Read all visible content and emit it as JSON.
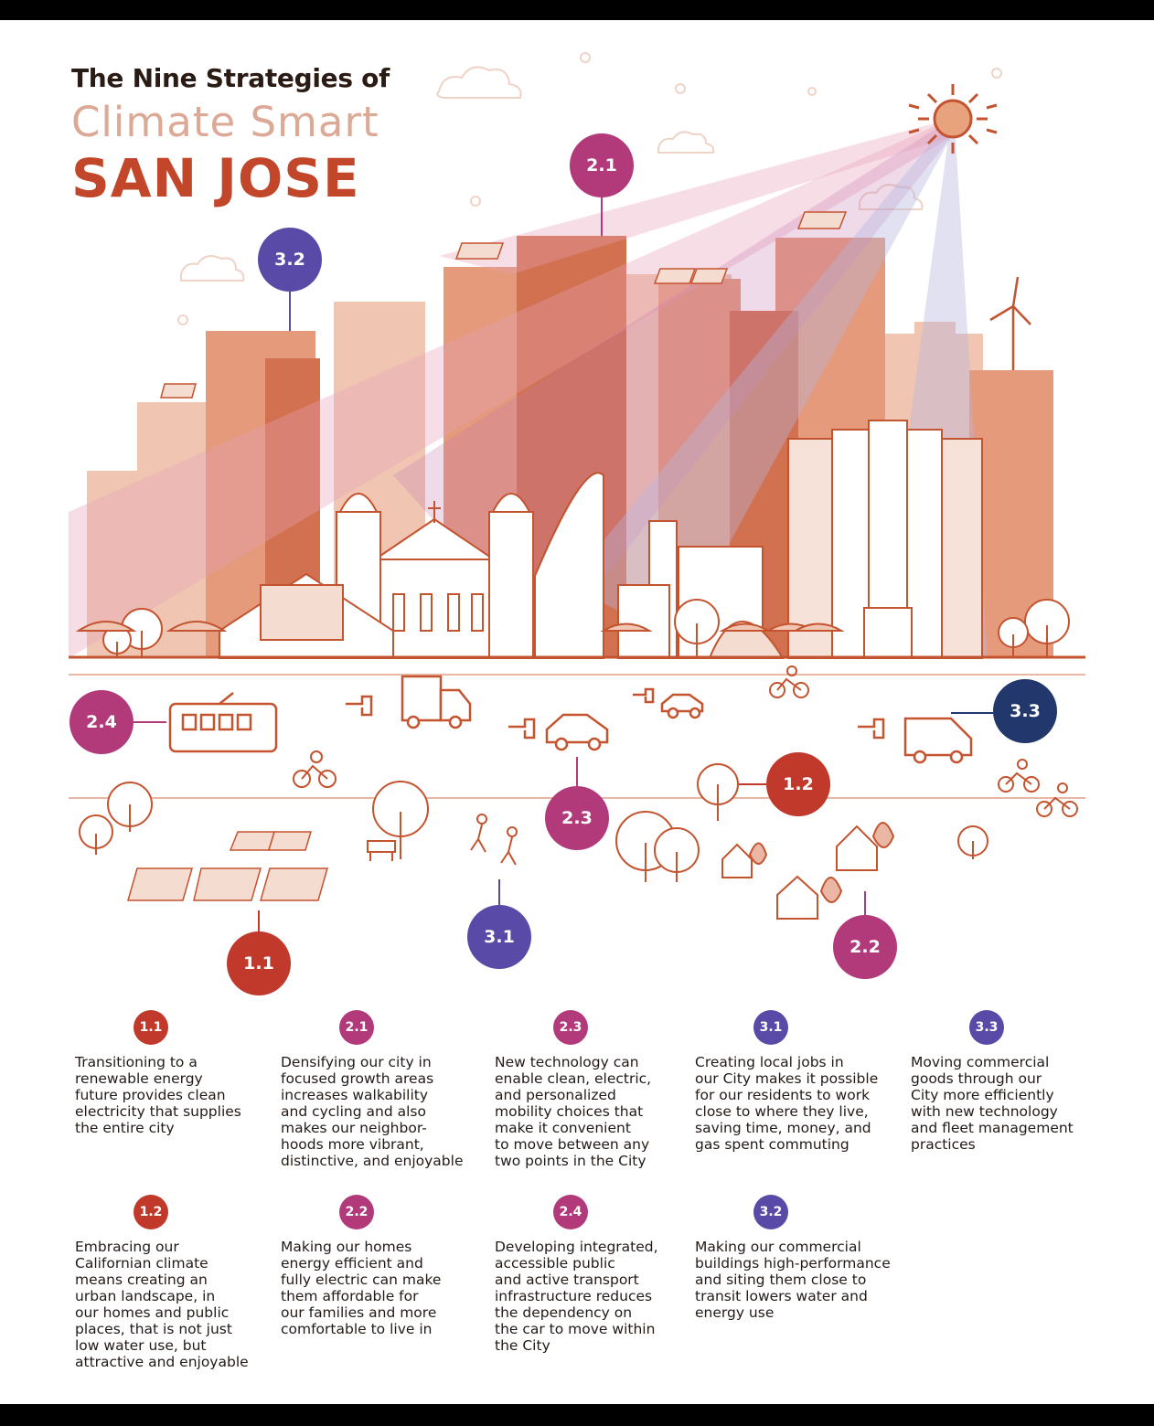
{
  "title": {
    "line1": "The Nine Strategies of",
    "line2": "Climate Smart",
    "line3": "SAN JOSE"
  },
  "colors": {
    "strategy_1": "#c0392b",
    "strategy_2": "#b23a7a",
    "strategy_3": "#5a4aa8",
    "strategy_3_3": "#22376b",
    "line_art": "#c4532f",
    "building_light": "#f0c6b3",
    "building_mid": "#e49a7b",
    "building_dark": "#d2714f"
  },
  "badges": [
    {
      "id": "badge-2-1",
      "label": "2.1",
      "group": "strategy_2"
    },
    {
      "id": "badge-3-2",
      "label": "3.2",
      "group": "strategy_3"
    },
    {
      "id": "badge-2-4",
      "label": "2.4",
      "group": "strategy_2"
    },
    {
      "id": "badge-3-3",
      "label": "3.3",
      "group": "strategy_3_3"
    },
    {
      "id": "badge-2-3",
      "label": "2.3",
      "group": "strategy_2"
    },
    {
      "id": "badge-1-2",
      "label": "1.2",
      "group": "strategy_1"
    },
    {
      "id": "badge-1-1",
      "label": "1.1",
      "group": "strategy_1"
    },
    {
      "id": "badge-3-1",
      "label": "3.1",
      "group": "strategy_3"
    },
    {
      "id": "badge-2-2",
      "label": "2.2",
      "group": "strategy_2"
    }
  ],
  "icons": [
    "sun-icon",
    "wind-turbine-icon",
    "solar-panel-icon",
    "tree-icon",
    "house-icon",
    "streetcar-icon",
    "electric-truck-icon",
    "electric-car-icon",
    "electric-van-icon",
    "bicycle-icon",
    "pedestrians-icon",
    "bench-icon",
    "cloud-icon"
  ],
  "legend": [
    {
      "num": "1.1",
      "group": "strategy_1",
      "text": "Transitioning to a\nrenewable energy\nfuture provides clean\nelectricity that supplies\nthe entire city"
    },
    {
      "num": "2.1",
      "group": "strategy_2",
      "text": "Densifying our city in\nfocused growth areas\nincreases walkability\nand cycling and also\nmakes our neighbor-\nhoods more vibrant,\ndistinctive, and enjoyable"
    },
    {
      "num": "2.3",
      "group": "strategy_2",
      "text": "New technology can\nenable clean, electric,\nand personalized\nmobility choices that\nmake it convenient\nto move between any\ntwo points in the City"
    },
    {
      "num": "3.1",
      "group": "strategy_3",
      "text": "Creating local jobs in\nour City makes it possible\nfor our residents to work\nclose to where they live,\nsaving time, money, and\ngas spent commuting"
    },
    {
      "num": "3.3",
      "group": "strategy_3",
      "text": "Moving commercial\ngoods through our\nCity more efficiently\nwith new technology\nand fleet management\npractices"
    },
    {
      "num": "1.2",
      "group": "strategy_1",
      "text": "Embracing our\nCalifornian climate\nmeans creating an\nurban landscape, in\nour homes and public\nplaces, that is not just\nlow water use, but\nattractive and enjoyable"
    },
    {
      "num": "2.2",
      "group": "strategy_2",
      "text": "Making our homes\nenergy efficient and\nfully electric can make\nthem affordable for\nour families and more\ncomfortable to live in"
    },
    {
      "num": "2.4",
      "group": "strategy_2",
      "text": "Developing integrated,\naccessible public\nand active transport\ninfrastructure reduces\nthe dependency on\nthe car to move within\nthe City"
    },
    {
      "num": "3.2",
      "group": "strategy_3",
      "text": "Making our commercial\nbuildings high-performance\nand siting them close to\ntransit lowers water and\nenergy use"
    }
  ]
}
